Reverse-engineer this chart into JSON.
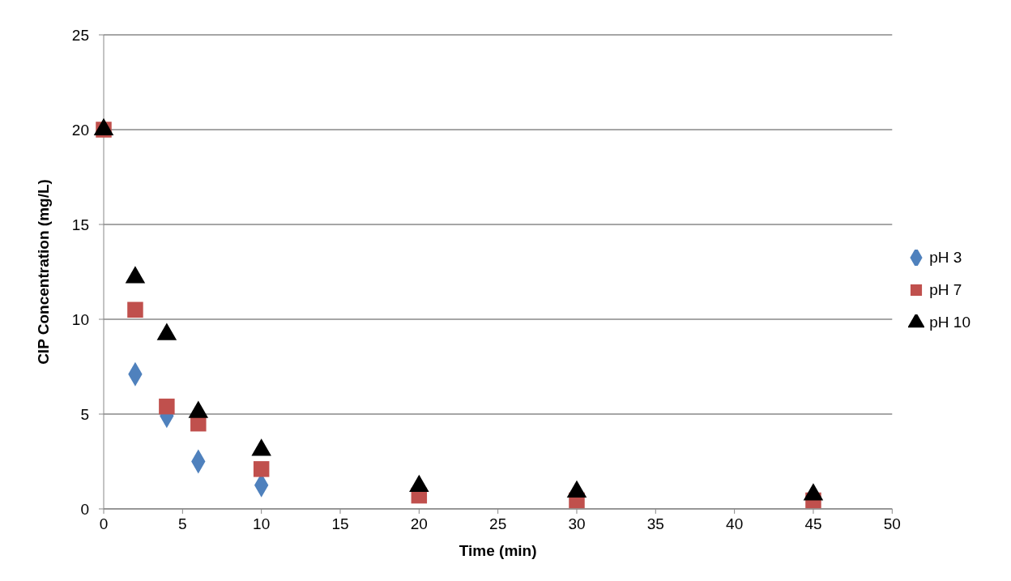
{
  "chart_data": {
    "type": "scatter",
    "xlabel": "Time (min)",
    "ylabel": "CIP Concentration (mg/L)",
    "x": [
      0,
      2,
      4,
      6,
      10,
      20,
      30,
      45
    ],
    "xlim": [
      0,
      50
    ],
    "xticks": [
      0,
      5,
      10,
      15,
      20,
      25,
      30,
      35,
      40,
      45,
      50
    ],
    "ylim": [
      0,
      25
    ],
    "yticks": [
      0,
      5,
      10,
      15,
      20,
      25
    ],
    "grid": "y",
    "legend": "right",
    "series": [
      {
        "name": "pH 3",
        "color": "#4f81bd",
        "marker": "diamond",
        "values": [
          null,
          7.1,
          4.9,
          2.5,
          1.25,
          null,
          null,
          null
        ]
      },
      {
        "name": "pH 7",
        "color": "#c0504d",
        "marker": "square",
        "values": [
          20,
          10.5,
          5.4,
          4.5,
          2.1,
          0.7,
          0.45,
          0.45
        ]
      },
      {
        "name": "pH 10",
        "color": "#000000",
        "marker": "triangle",
        "values": [
          20,
          12.2,
          9.2,
          5.1,
          3.1,
          1.2,
          0.9,
          0.75
        ]
      }
    ]
  }
}
